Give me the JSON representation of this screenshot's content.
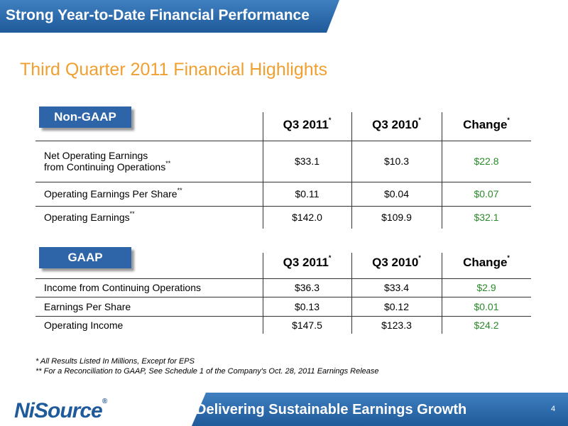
{
  "header": {
    "title": "Strong Year-to-Date Financial Performance"
  },
  "subtitle": "Third Quarter 2011 Financial Highlights",
  "tables": [
    {
      "label": "Non-GAAP",
      "columns": [
        {
          "text": "Q3 2011",
          "sup": "*"
        },
        {
          "text": "Q3 2010",
          "sup": "*"
        },
        {
          "text": "Change",
          "sup": "*"
        }
      ],
      "rows": [
        {
          "label": [
            "Net Operating Earnings",
            "from Continuing Operations"
          ],
          "sup": "**",
          "values": [
            "$33.1",
            "$10.3",
            "$22.8"
          ]
        },
        {
          "label": [
            "Operating Earnings Per Share"
          ],
          "sup": "**",
          "values": [
            "$0.11",
            "$0.04",
            "$0.07"
          ]
        },
        {
          "label": [
            "Operating Earnings"
          ],
          "sup": "**",
          "values": [
            "$142.0",
            "$109.9",
            "$32.1"
          ]
        }
      ]
    },
    {
      "label": "GAAP",
      "columns": [
        {
          "text": "Q3 2011",
          "sup": "*"
        },
        {
          "text": "Q3 2010",
          "sup": "*"
        },
        {
          "text": "Change",
          "sup": "*"
        }
      ],
      "rows": [
        {
          "label": [
            "Income from Continuing Operations"
          ],
          "values": [
            "$36.3",
            "$33.4",
            "$2.9"
          ]
        },
        {
          "label": [
            "Earnings Per Share"
          ],
          "values": [
            "$0.13",
            "$0.12",
            "$0.01"
          ]
        },
        {
          "label": [
            "Operating Income"
          ],
          "values": [
            "$147.5",
            "$123.3",
            "$24.2"
          ]
        }
      ]
    }
  ],
  "footnotes": [
    "* All Results Listed In Millions, Except for EPS",
    "** For a Reconciliation to GAAP, See Schedule 1 of the Company's Oct. 28, 2011 Earnings Release"
  ],
  "logo": {
    "text": "NiSource",
    "mark": "®"
  },
  "footer": {
    "tagline": "Delivering Sustainable Earnings Growth",
    "page": "4"
  }
}
